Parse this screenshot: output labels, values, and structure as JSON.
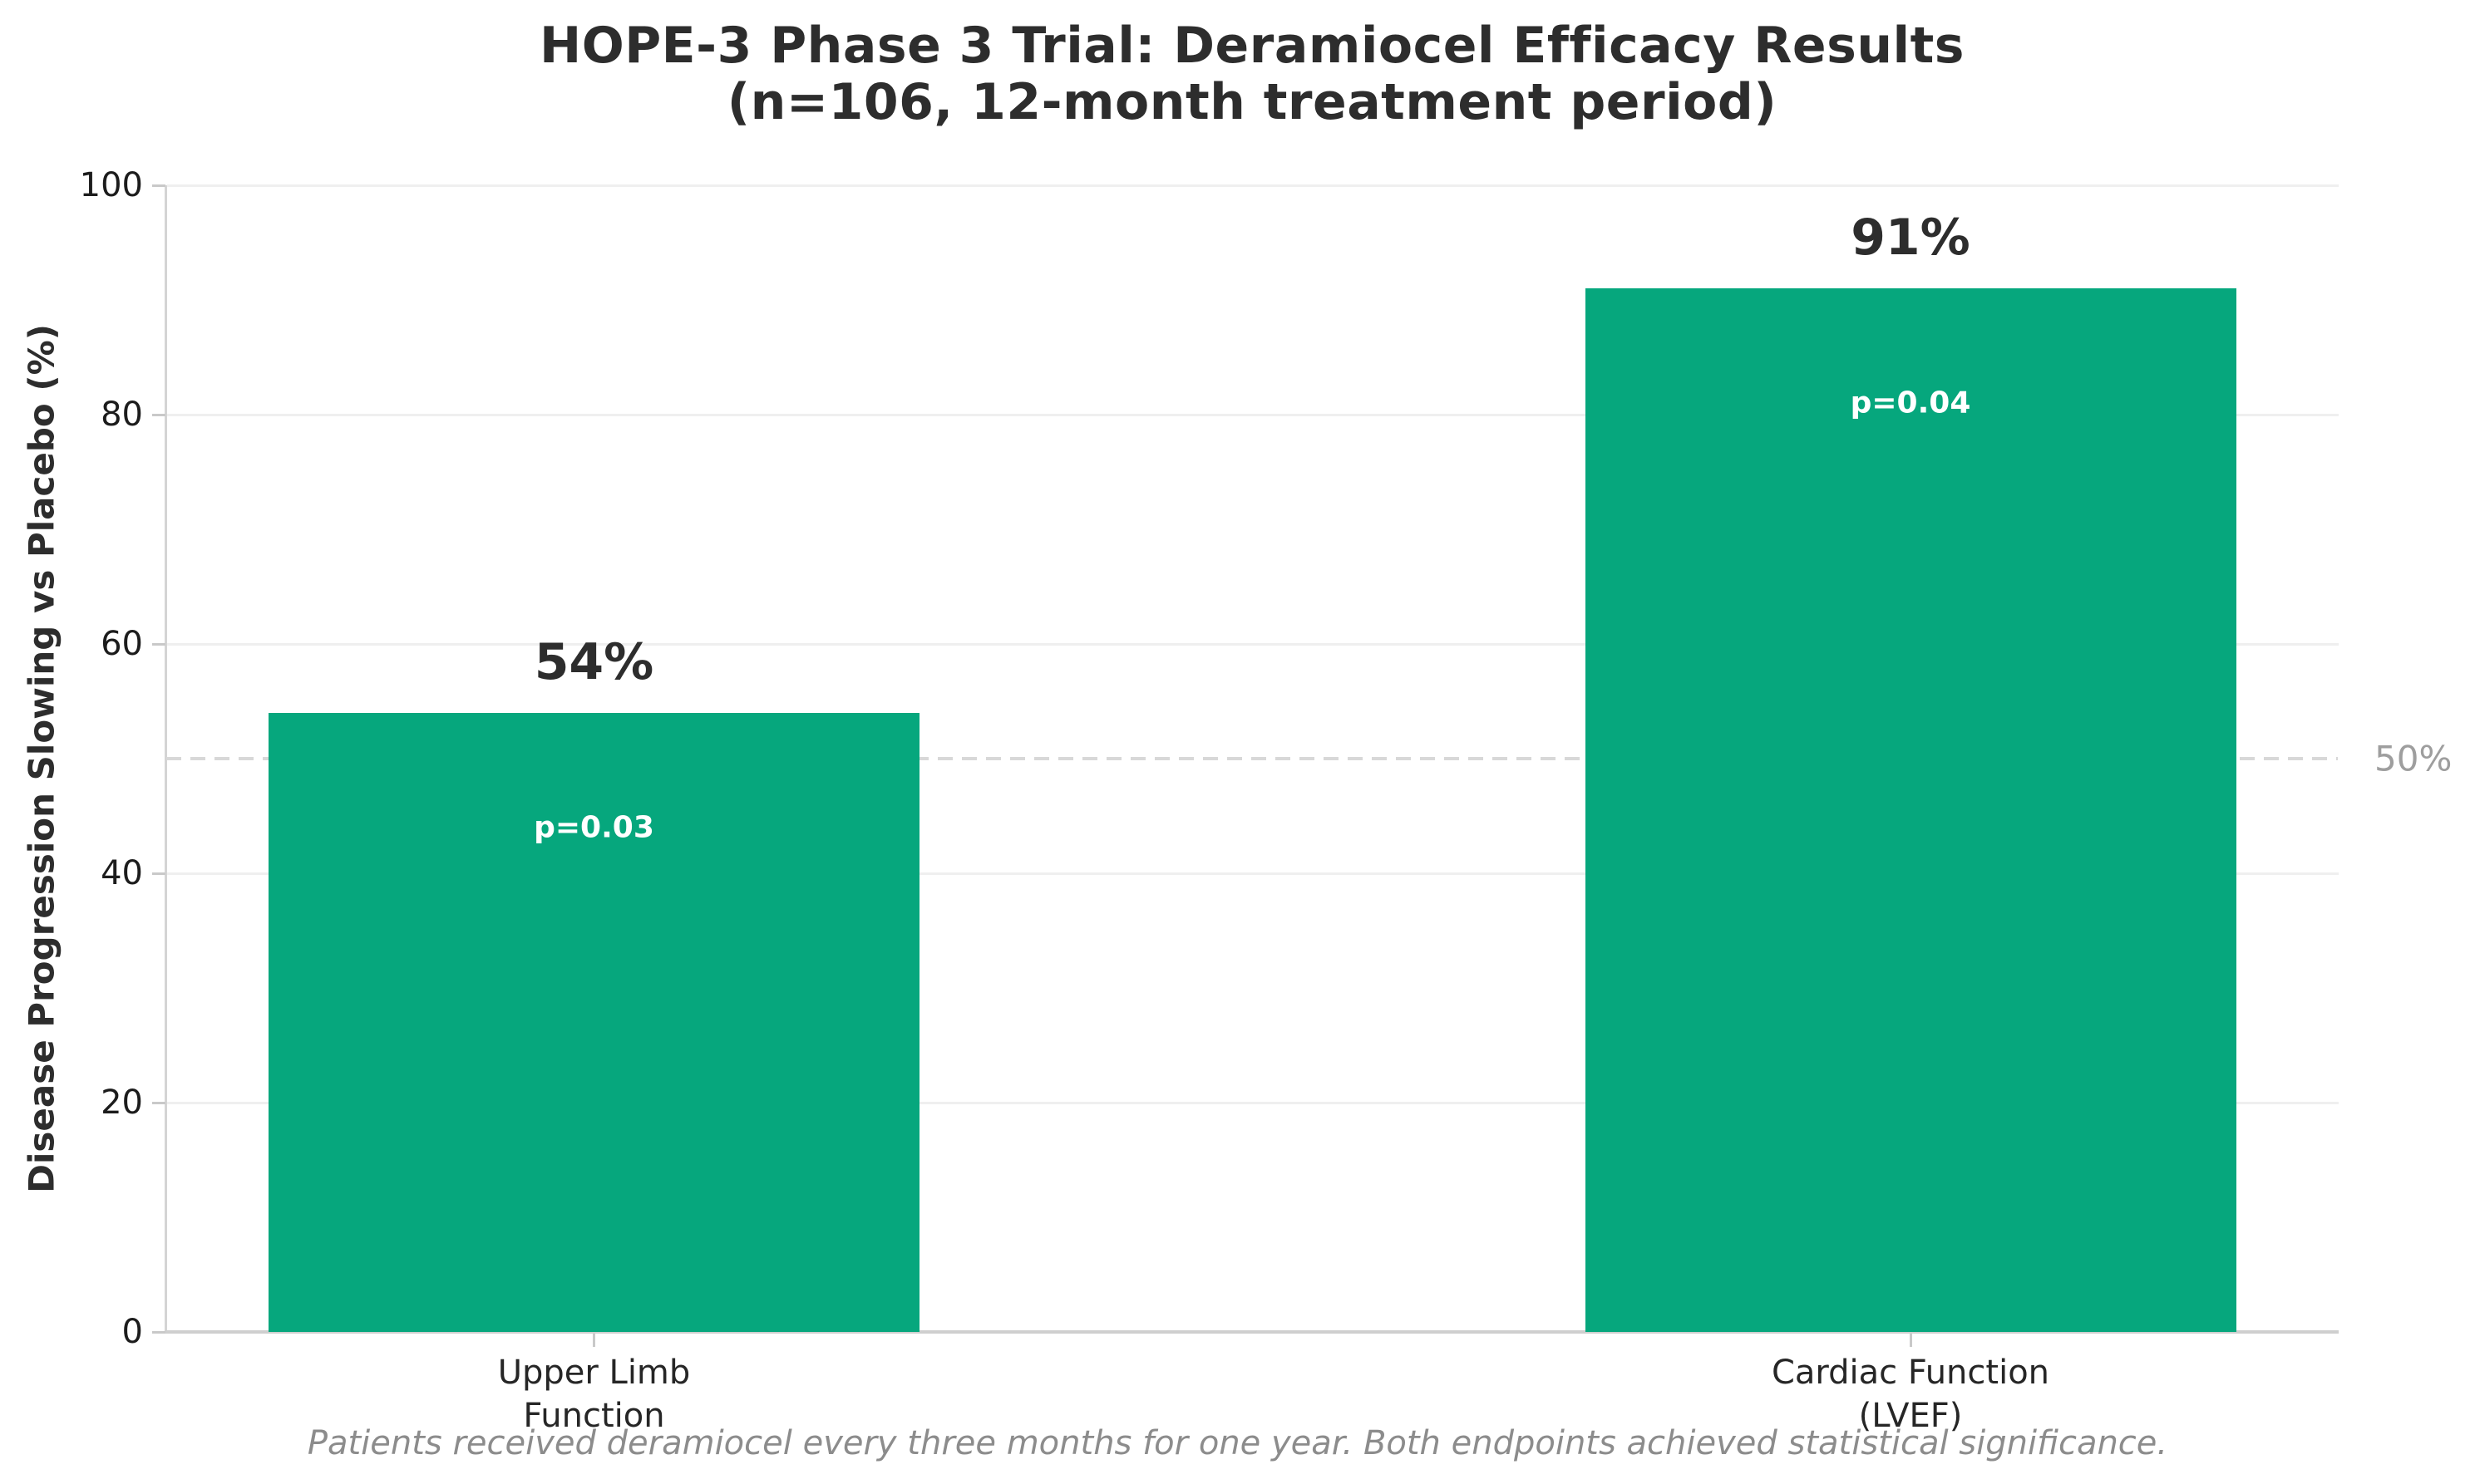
{
  "chart_data": {
    "type": "bar",
    "title": "HOPE-3 Phase 3 Trial: Deramiocel Efficacy Results",
    "subtitle": "(n=106, 12-month treatment period)",
    "ylabel": "Disease Progression Slowing vs Placebo (%)",
    "xlabel": "",
    "categories": [
      "Upper Limb\nFunction",
      "Cardiac Function\n(LVEF)"
    ],
    "values": [
      54,
      91
    ],
    "bar_value_labels": [
      "54%",
      "91%"
    ],
    "p_value_labels": [
      "p=0.03",
      "p=0.04"
    ],
    "ylim": [
      0,
      100
    ],
    "yticks": [
      0,
      20,
      40,
      60,
      80,
      100
    ],
    "grid": true,
    "legend": false,
    "reference_line": {
      "value": 50,
      "label": "50%"
    },
    "footnote": "Patients received deramiocel every three months for one year. Both endpoints achieved statistical significance.",
    "colors": {
      "bar": "#06a77d",
      "value_label_text": "#2d2d2d",
      "p_label_text": "#ffffff",
      "reference_line": "#d8d8d8",
      "reference_label_text": "#9e9e9e",
      "grid_line": "#efefef",
      "axis_spine": "#d0d0d0",
      "tick_text": "#1c1c1c",
      "footnote_text": "#8c8c8c"
    }
  }
}
